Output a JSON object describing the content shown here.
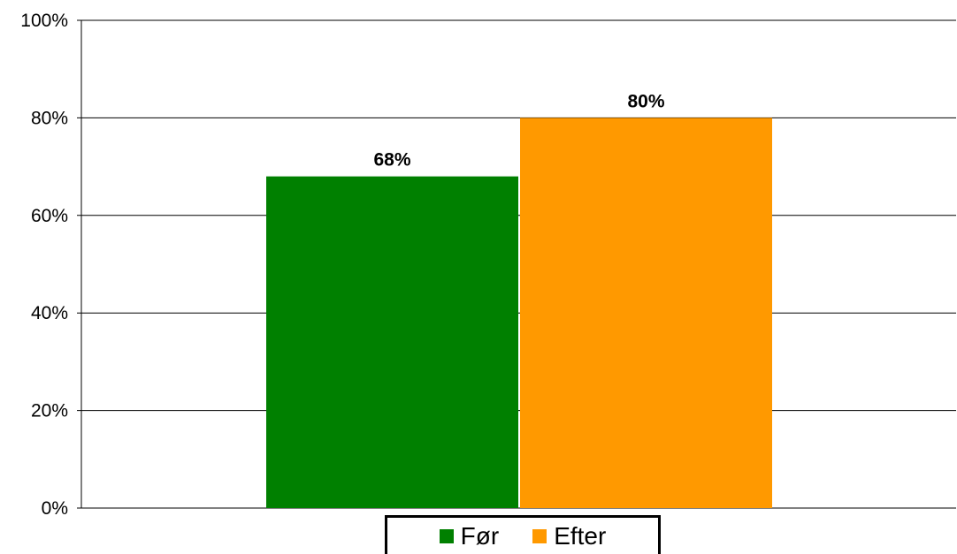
{
  "chart_data": {
    "type": "bar",
    "categories": [
      ""
    ],
    "series": [
      {
        "name": "Før",
        "values": [
          68
        ],
        "color": "#008000",
        "label": "68%"
      },
      {
        "name": "Efter",
        "values": [
          80
        ],
        "color": "#FF9900",
        "label": "80%"
      }
    ],
    "ylim": [
      0,
      100
    ],
    "yticks": [
      "0%",
      "20%",
      "40%",
      "60%",
      "80%",
      "100%"
    ],
    "title": "",
    "xlabel": "",
    "ylabel": "",
    "grid": true,
    "legend_position": "bottom"
  },
  "legend": {
    "items": [
      {
        "label": "Før",
        "color": "#008000"
      },
      {
        "label": "Efter",
        "color": "#FF9900"
      }
    ]
  }
}
